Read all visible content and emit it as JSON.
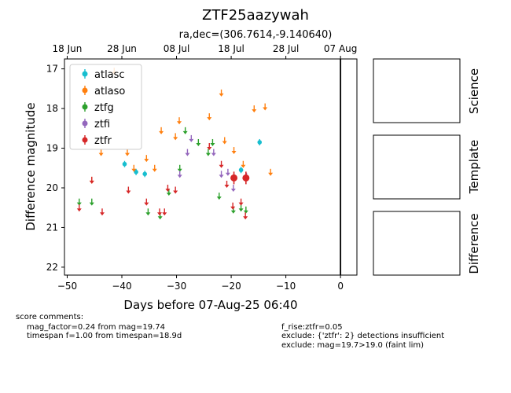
{
  "chart_data": {
    "type": "scatter",
    "title": "ZTF25aazywah",
    "subtitle": "ra,dec=(306.7614,-9.140640)",
    "xlabel": "Days before 07-Aug-25 06:40",
    "ylabel": "Difference magnitude",
    "xlim": [
      -50.5,
      3
    ],
    "ylim": [
      22.2,
      16.75
    ],
    "y_inverted": true,
    "xticks": [
      -50,
      -40,
      -30,
      -20,
      -10,
      0
    ],
    "yticks": [
      17,
      18,
      19,
      20,
      21,
      22
    ],
    "top_axis_ticks": [
      {
        "label": "18 Jun",
        "x": -50
      },
      {
        "label": "28 Jun",
        "x": -40
      },
      {
        "label": "08 Jul",
        "x": -30
      },
      {
        "label": "18 Jul",
        "x": -20
      },
      {
        "label": "28 Jul",
        "x": -10
      },
      {
        "label": "07 Aug",
        "x": 0
      }
    ],
    "vline_x": 0,
    "legend_position": "upper-left",
    "panel_labels": [
      "Science",
      "Template",
      "Difference"
    ],
    "series": [
      {
        "name": "atlasc",
        "color": "#17becf",
        "kind": "point",
        "points": [
          [
            -39.5,
            19.4
          ],
          [
            -37.4,
            19.6
          ],
          [
            -35.8,
            19.65
          ],
          [
            -18.2,
            19.55
          ],
          [
            -14.8,
            18.85
          ]
        ]
      },
      {
        "name": "atlaso",
        "color": "#ff7f0e",
        "kind": "limit",
        "points": [
          [
            -45.5,
            19.8
          ],
          [
            -43.8,
            19.1
          ],
          [
            -41.4,
            17.05
          ],
          [
            -39.0,
            19.1
          ],
          [
            -37.8,
            19.5
          ],
          [
            -35.5,
            19.25
          ],
          [
            -34.0,
            19.5
          ],
          [
            -32.8,
            18.55
          ],
          [
            -30.2,
            18.7
          ],
          [
            -29.5,
            18.3
          ],
          [
            -24.0,
            18.2
          ],
          [
            -21.8,
            17.6
          ],
          [
            -21.2,
            18.8
          ],
          [
            -19.5,
            19.05
          ],
          [
            -17.8,
            19.4
          ],
          [
            -15.8,
            18.0
          ],
          [
            -13.8,
            17.95
          ],
          [
            -12.8,
            19.6
          ]
        ]
      },
      {
        "name": "ztfg",
        "color": "#2ca02c",
        "kind": "limit",
        "points": [
          [
            -47.8,
            20.35
          ],
          [
            -45.5,
            20.35
          ],
          [
            -35.2,
            20.6
          ],
          [
            -33.0,
            20.7
          ],
          [
            -31.4,
            20.1
          ],
          [
            -29.4,
            19.5
          ],
          [
            -28.4,
            18.55
          ],
          [
            -26.0,
            18.85
          ],
          [
            -24.2,
            19.1
          ],
          [
            -23.4,
            18.85
          ],
          [
            -22.2,
            20.2
          ],
          [
            -19.6,
            20.55
          ],
          [
            -18.2,
            20.5
          ],
          [
            -17.3,
            20.55
          ]
        ]
      },
      {
        "name": "ztfi",
        "color": "#9467bd",
        "kind": "limit",
        "points": [
          [
            -29.4,
            19.65
          ],
          [
            -28.0,
            19.1
          ],
          [
            -27.3,
            18.75
          ],
          [
            -23.2,
            19.1
          ],
          [
            -21.8,
            19.65
          ],
          [
            -20.6,
            19.6
          ],
          [
            -19.6,
            20.0
          ],
          [
            -17.2,
            19.7
          ]
        ]
      },
      {
        "name": "ztfr",
        "color": "#d62728",
        "kind": "limit",
        "points": [
          [
            -47.8,
            20.5
          ],
          [
            -45.5,
            19.8
          ],
          [
            -43.6,
            20.6
          ],
          [
            -38.8,
            20.05
          ],
          [
            -35.5,
            20.35
          ],
          [
            -33.1,
            20.6
          ],
          [
            -32.2,
            20.6
          ],
          [
            -31.6,
            20.0
          ],
          [
            -30.2,
            20.05
          ],
          [
            -24.0,
            18.95
          ],
          [
            -21.8,
            19.4
          ],
          [
            -20.8,
            19.9
          ],
          [
            -19.7,
            20.45
          ],
          [
            -18.2,
            20.35
          ],
          [
            -17.4,
            20.7
          ]
        ]
      },
      {
        "name": "ztfr_detections",
        "color": "#d62728",
        "kind": "detection",
        "points": [
          [
            -19.5,
            19.75
          ],
          [
            -17.3,
            19.75
          ]
        ]
      }
    ]
  },
  "comments": {
    "header": "score comments:",
    "left": [
      "mag_factor=0.24 from mag=19.74",
      "timespan f=1.00 from timespan=18.9d"
    ],
    "right": [
      "f_rise:ztfr=0.05",
      "exclude: {'ztfr': 2} detections insufficient",
      "exclude: mag=19.7>19.0 (faint lim)"
    ]
  }
}
